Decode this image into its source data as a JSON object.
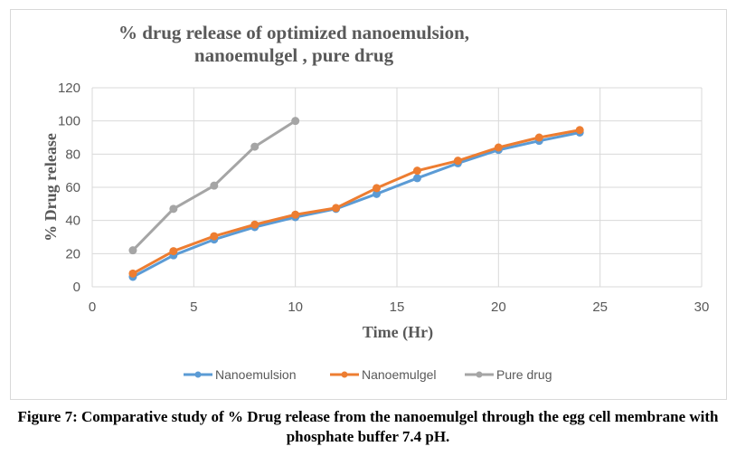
{
  "chart_data": {
    "type": "line",
    "title": "% drug release of optimized nanoemulsion, nanoemulgel , pure drug",
    "xlabel": "Time (Hr)",
    "ylabel": "% Drug release",
    "xlim": [
      0,
      30
    ],
    "ylim": [
      0,
      120
    ],
    "xticks": [
      0,
      5,
      10,
      15,
      20,
      25,
      30
    ],
    "yticks": [
      0,
      20,
      40,
      60,
      80,
      100,
      120
    ],
    "grid": true,
    "legend_position": "bottom",
    "series": [
      {
        "name": "Nanoemulsion",
        "color": "#5b9bd5",
        "x": [
          2,
          4,
          6,
          8,
          10,
          12,
          14,
          16,
          18,
          20,
          22,
          24
        ],
        "y": [
          6,
          19,
          28.5,
          36,
          42,
          47,
          56,
          65.5,
          74.5,
          82.5,
          88,
          93
        ]
      },
      {
        "name": "Nanoemulgel",
        "color": "#ed7d31",
        "x": [
          2,
          4,
          6,
          8,
          10,
          12,
          14,
          16,
          18,
          20,
          22,
          24
        ],
        "y": [
          8,
          21.5,
          30.5,
          37.5,
          43.5,
          47.5,
          59.5,
          70,
          76,
          84,
          90,
          94.5
        ]
      },
      {
        "name": "Pure drug",
        "color": "#a5a5a5",
        "x": [
          2,
          4,
          6,
          8,
          10
        ],
        "y": [
          22,
          47,
          61,
          84.5,
          100
        ]
      }
    ]
  },
  "caption": "Figure 7: Comparative study of % Drug release from the nanoemulgel through the egg cell membrane with phosphate buffer 7.4 pH."
}
